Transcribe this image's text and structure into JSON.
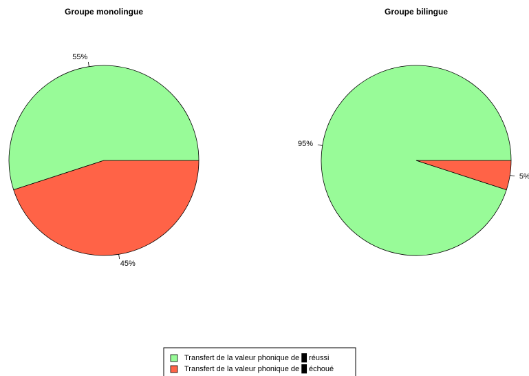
{
  "chart_data": [
    {
      "type": "pie",
      "title": "Groupe monolingue",
      "values": [
        55,
        45
      ],
      "value_labels": [
        "55%",
        "45%"
      ]
    },
    {
      "type": "pie",
      "title": "Groupe bilingue",
      "values": [
        95,
        5
      ],
      "value_labels": [
        "95%",
        "5%"
      ]
    }
  ],
  "legend": {
    "labels": [
      "Transfert de la valeur phonique de █ réussi",
      "Transfert de la valeur phonique de █ échoué"
    ],
    "colors": [
      "#98fb98",
      "#ff6347"
    ]
  }
}
